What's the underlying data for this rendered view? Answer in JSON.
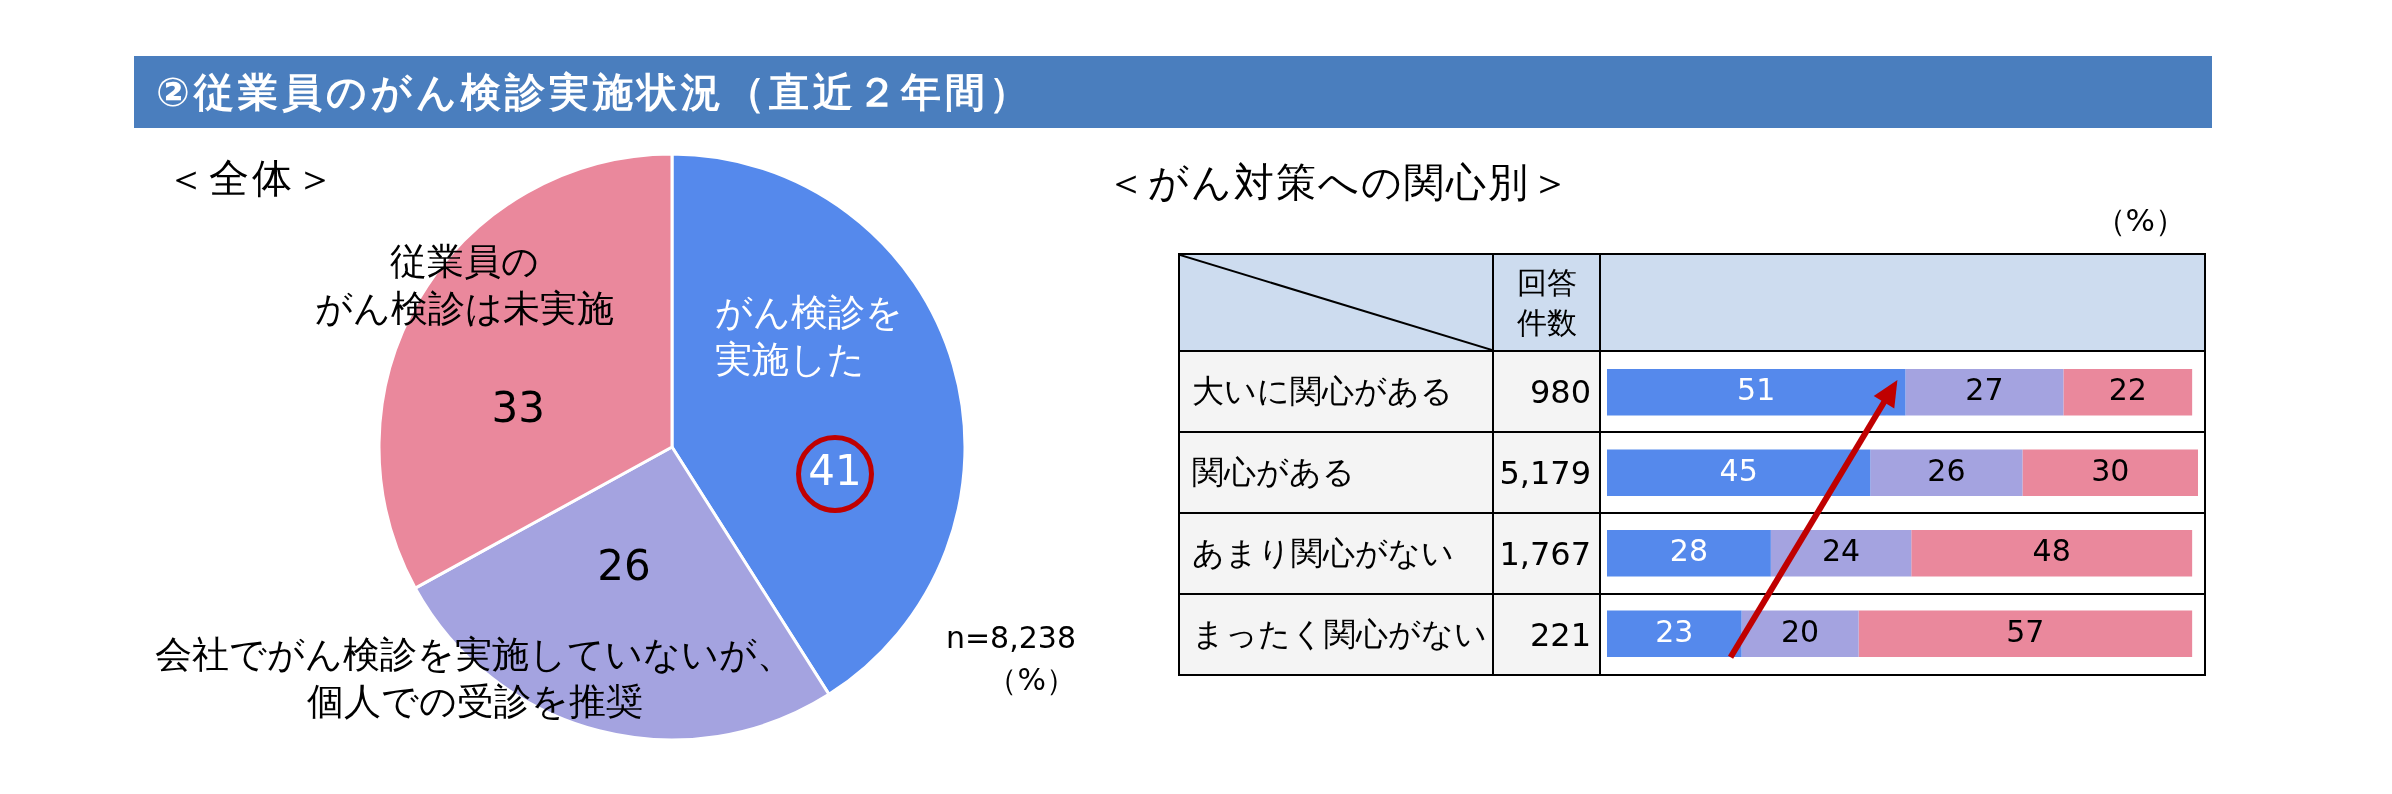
{
  "chart_data": [
    {
      "type": "pie",
      "title": "②従業員のがん検診実施状況（直近２年間）",
      "subtitle": "＜全体＞",
      "categories": [
        "がん検診を実施した",
        "会社でがん検診を実施していないが、個人での受診を推奨",
        "従業員のがん検診は未実施"
      ],
      "values": [
        41,
        26,
        33
      ],
      "colors": [
        "#5589ec",
        "#a4a3e0",
        "#ea889c"
      ],
      "data_labels": true,
      "annotations": [
        "n=8,238",
        "（%）"
      ]
    },
    {
      "type": "bar",
      "orientation": "horizontal",
      "stacked": true,
      "title": "＜がん対策への関心別＞",
      "categories": [
        "大いに関心がある",
        "関心がある",
        "あまり関心がない",
        "まったく関心がない"
      ],
      "y2_categories": [
        "980",
        "5,179",
        "1,767",
        "221"
      ],
      "y2label": "回答件数",
      "series": [
        {
          "color": "#5589ec",
          "values": [
            51,
            45,
            28,
            23
          ]
        },
        {
          "color": "#a4a3e0",
          "values": [
            27,
            26,
            24,
            20
          ]
        },
        {
          "color": "#ea889c",
          "values": [
            22,
            30,
            48,
            57
          ]
        }
      ],
      "data_labels": true,
      "annotations": [
        "（%）"
      ]
    }
  ]
}
